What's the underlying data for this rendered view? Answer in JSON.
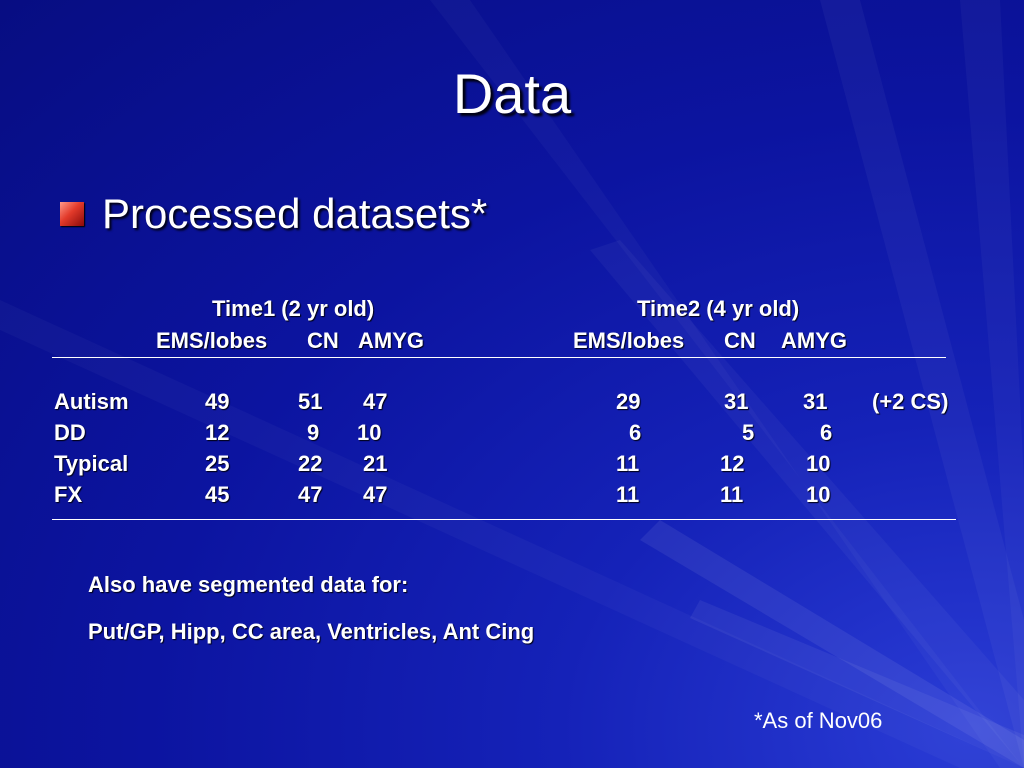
{
  "slide": {
    "title": "Data",
    "bullet": "Processed datasets*",
    "footnote": "*As of Nov06"
  },
  "table": {
    "group_headers": [
      "Time1 (2 yr old)",
      "Time2 (4 yr old)"
    ],
    "sub_headers": [
      [
        "EMS/lobes",
        "CN",
        "AMYG"
      ],
      [
        "EMS/lobes",
        "CN",
        "AMYG"
      ]
    ],
    "rows": [
      {
        "label": "Autism",
        "t1": [
          "49",
          "51",
          "47"
        ],
        "t2": [
          "29",
          "31",
          "31"
        ],
        "note": "(+2 CS)"
      },
      {
        "label": "DD",
        "t1": [
          "12",
          "9",
          "10"
        ],
        "t2": [
          "6",
          "5",
          "6"
        ],
        "note": ""
      },
      {
        "label": "Typical",
        "t1": [
          "25",
          "22",
          "21"
        ],
        "t2": [
          "11",
          "12",
          "10"
        ],
        "note": ""
      },
      {
        "label": "FX",
        "t1": [
          "45",
          "47",
          "47"
        ],
        "t2": [
          "11",
          "11",
          "10"
        ],
        "note": ""
      }
    ]
  },
  "notes": {
    "line1": "Also have segmented data for:",
    "line2": "Put/GP, Hipp, CC area, Ventricles, Ant Cing"
  },
  "colors": {
    "background": "#0c14a0",
    "bullet_accent": "#e23a2a",
    "text": "#ffffff"
  }
}
